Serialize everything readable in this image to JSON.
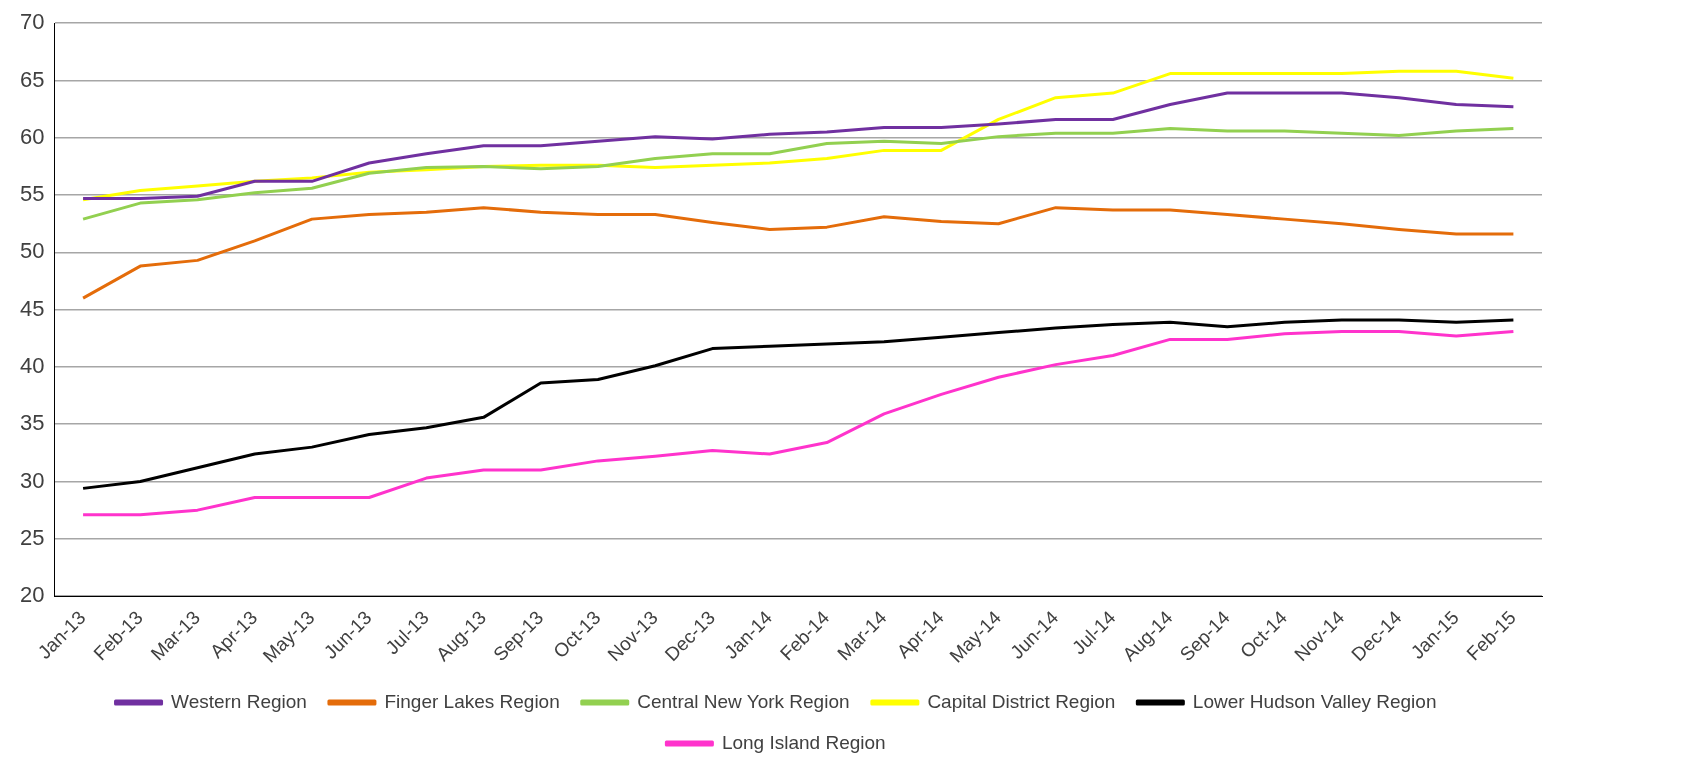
{
  "chart_data": {
    "type": "line",
    "categories": [
      "Jan-13",
      "Feb-13",
      "Mar-13",
      "Apr-13",
      "May-13",
      "Jun-13",
      "Jul-13",
      "Aug-13",
      "Sep-13",
      "Oct-13",
      "Nov-13",
      "Dec-13",
      "Jan-14",
      "Feb-14",
      "Mar-14",
      "Apr-14",
      "May-14",
      "Jun-14",
      "Jul-14",
      "Aug-14",
      "Sep-14",
      "Oct-14",
      "Nov-14",
      "Dec-14",
      "Jan-15",
      "Feb-15"
    ],
    "series": [
      {
        "name": "Western Region",
        "color": "#7030a0",
        "values": [
          54.7,
          54.7,
          54.9,
          56.2,
          56.2,
          57.8,
          58.6,
          59.3,
          59.3,
          59.7,
          60.1,
          59.9,
          60.3,
          60.5,
          60.9,
          60.9,
          61.2,
          61.6,
          61.6,
          62.9,
          63.9,
          63.9,
          63.9,
          63.5,
          62.9,
          62.7
        ]
      },
      {
        "name": "Finger Lakes Region",
        "color": "#e46c0a",
        "values": [
          46.0,
          48.8,
          49.3,
          51.0,
          52.9,
          53.3,
          53.5,
          53.9,
          53.5,
          53.3,
          53.3,
          52.6,
          52.0,
          52.2,
          53.1,
          52.7,
          52.5,
          53.9,
          53.7,
          53.7,
          53.3,
          52.9,
          52.5,
          52.0,
          51.6,
          51.6
        ]
      },
      {
        "name": "Central New York Region",
        "color": "#92d050",
        "values": [
          52.9,
          54.3,
          54.6,
          55.2,
          55.6,
          56.9,
          57.4,
          57.5,
          57.3,
          57.5,
          58.2,
          58.6,
          58.6,
          59.5,
          59.7,
          59.5,
          60.1,
          60.4,
          60.4,
          60.8,
          60.6,
          60.6,
          60.4,
          60.2,
          60.6,
          60.8
        ]
      },
      {
        "name": "Capital District Region",
        "color": "#ffff00",
        "values": [
          54.6,
          55.4,
          55.8,
          56.2,
          56.5,
          57.0,
          57.2,
          57.5,
          57.6,
          57.6,
          57.4,
          57.6,
          57.8,
          58.2,
          58.9,
          58.9,
          61.6,
          63.5,
          63.9,
          65.6,
          65.6,
          65.6,
          65.6,
          65.8,
          65.8,
          65.2
        ]
      },
      {
        "name": "Lower Hudson Valley Region",
        "color": "#000000",
        "values": [
          29.4,
          30.0,
          31.2,
          32.4,
          33.0,
          34.1,
          34.7,
          35.6,
          38.6,
          38.9,
          40.1,
          41.6,
          41.8,
          42.0,
          42.2,
          42.6,
          43.0,
          43.4,
          43.7,
          43.9,
          43.5,
          43.9,
          44.1,
          44.1,
          43.9,
          44.1
        ]
      },
      {
        "name": "Long Island Region",
        "color": "#ff33cc",
        "values": [
          27.1,
          27.1,
          27.5,
          28.6,
          28.6,
          28.6,
          30.3,
          31.0,
          31.0,
          31.8,
          32.2,
          32.7,
          32.4,
          33.4,
          35.9,
          37.6,
          39.1,
          40.2,
          41.0,
          42.4,
          42.4,
          42.9,
          43.1,
          43.1,
          42.7,
          43.1
        ]
      }
    ],
    "ylim": [
      20,
      70
    ],
    "yticks": [
      20,
      25,
      30,
      35,
      40,
      45,
      50,
      55,
      60,
      65,
      70
    ],
    "grid": "y",
    "legend": "bottom",
    "marker": "none",
    "line_style": "solid"
  }
}
